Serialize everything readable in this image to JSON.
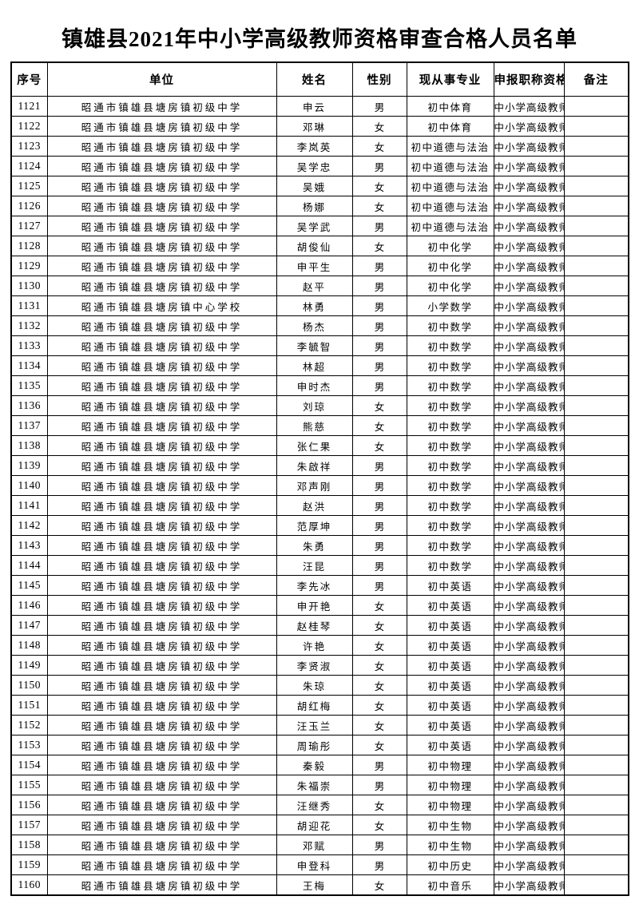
{
  "page": {
    "title": "镇雄县2021年中小学高级教师资格审查合格人员名单"
  },
  "table": {
    "headers": [
      "序号",
      "单位",
      "姓名",
      "性别",
      "现从事专业",
      "申报职称资格",
      "备注"
    ],
    "rows": [
      {
        "no": "1121",
        "unit": "昭通市镇雄县塘房镇初级中学",
        "name": "申云",
        "gender": "男",
        "subject": "初中体育",
        "title": "中小学高级教师",
        "note": ""
      },
      {
        "no": "1122",
        "unit": "昭通市镇雄县塘房镇初级中学",
        "name": "邓琳",
        "gender": "女",
        "subject": "初中体育",
        "title": "中小学高级教师",
        "note": ""
      },
      {
        "no": "1123",
        "unit": "昭通市镇雄县塘房镇初级中学",
        "name": "李岚英",
        "gender": "女",
        "subject": "初中道德与法治",
        "title": "中小学高级教师",
        "note": ""
      },
      {
        "no": "1124",
        "unit": "昭通市镇雄县塘房镇初级中学",
        "name": "吴学忠",
        "gender": "男",
        "subject": "初中道德与法治",
        "title": "中小学高级教师",
        "note": ""
      },
      {
        "no": "1125",
        "unit": "昭通市镇雄县塘房镇初级中学",
        "name": "吴娥",
        "gender": "女",
        "subject": "初中道德与法治",
        "title": "中小学高级教师",
        "note": ""
      },
      {
        "no": "1126",
        "unit": "昭通市镇雄县塘房镇初级中学",
        "name": "杨娜",
        "gender": "女",
        "subject": "初中道德与法治",
        "title": "中小学高级教师",
        "note": ""
      },
      {
        "no": "1127",
        "unit": "昭通市镇雄县塘房镇初级中学",
        "name": "吴学武",
        "gender": "男",
        "subject": "初中道德与法治",
        "title": "中小学高级教师",
        "note": ""
      },
      {
        "no": "1128",
        "unit": "昭通市镇雄县塘房镇初级中学",
        "name": "胡俊仙",
        "gender": "女",
        "subject": "初中化学",
        "title": "中小学高级教师",
        "note": ""
      },
      {
        "no": "1129",
        "unit": "昭通市镇雄县塘房镇初级中学",
        "name": "申平生",
        "gender": "男",
        "subject": "初中化学",
        "title": "中小学高级教师",
        "note": ""
      },
      {
        "no": "1130",
        "unit": "昭通市镇雄县塘房镇初级中学",
        "name": "赵平",
        "gender": "男",
        "subject": "初中化学",
        "title": "中小学高级教师",
        "note": ""
      },
      {
        "no": "1131",
        "unit": "昭通市镇雄县塘房镇中心学校",
        "name": "林勇",
        "gender": "男",
        "subject": "小学数学",
        "title": "中小学高级教师",
        "note": ""
      },
      {
        "no": "1132",
        "unit": "昭通市镇雄县塘房镇初级中学",
        "name": "杨杰",
        "gender": "男",
        "subject": "初中数学",
        "title": "中小学高级教师",
        "note": ""
      },
      {
        "no": "1133",
        "unit": "昭通市镇雄县塘房镇初级中学",
        "name": "李毓智",
        "gender": "男",
        "subject": "初中数学",
        "title": "中小学高级教师",
        "note": ""
      },
      {
        "no": "1134",
        "unit": "昭通市镇雄县塘房镇初级中学",
        "name": "林超",
        "gender": "男",
        "subject": "初中数学",
        "title": "中小学高级教师",
        "note": ""
      },
      {
        "no": "1135",
        "unit": "昭通市镇雄县塘房镇初级中学",
        "name": "申时杰",
        "gender": "男",
        "subject": "初中数学",
        "title": "中小学高级教师",
        "note": ""
      },
      {
        "no": "1136",
        "unit": "昭通市镇雄县塘房镇初级中学",
        "name": "刘琼",
        "gender": "女",
        "subject": "初中数学",
        "title": "中小学高级教师",
        "note": ""
      },
      {
        "no": "1137",
        "unit": "昭通市镇雄县塘房镇初级中学",
        "name": "熊慈",
        "gender": "女",
        "subject": "初中数学",
        "title": "中小学高级教师",
        "note": ""
      },
      {
        "no": "1138",
        "unit": "昭通市镇雄县塘房镇初级中学",
        "name": "张仁果",
        "gender": "女",
        "subject": "初中数学",
        "title": "中小学高级教师",
        "note": ""
      },
      {
        "no": "1139",
        "unit": "昭通市镇雄县塘房镇初级中学",
        "name": "朱啟祥",
        "gender": "男",
        "subject": "初中数学",
        "title": "中小学高级教师",
        "note": ""
      },
      {
        "no": "1140",
        "unit": "昭通市镇雄县塘房镇初级中学",
        "name": "邓声刚",
        "gender": "男",
        "subject": "初中数学",
        "title": "中小学高级教师",
        "note": ""
      },
      {
        "no": "1141",
        "unit": "昭通市镇雄县塘房镇初级中学",
        "name": "赵洪",
        "gender": "男",
        "subject": "初中数学",
        "title": "中小学高级教师",
        "note": ""
      },
      {
        "no": "1142",
        "unit": "昭通市镇雄县塘房镇初级中学",
        "name": "范厚坤",
        "gender": "男",
        "subject": "初中数学",
        "title": "中小学高级教师",
        "note": ""
      },
      {
        "no": "1143",
        "unit": "昭通市镇雄县塘房镇初级中学",
        "name": "朱勇",
        "gender": "男",
        "subject": "初中数学",
        "title": "中小学高级教师",
        "note": ""
      },
      {
        "no": "1144",
        "unit": "昭通市镇雄县塘房镇初级中学",
        "name": "汪昆",
        "gender": "男",
        "subject": "初中数学",
        "title": "中小学高级教师",
        "note": ""
      },
      {
        "no": "1145",
        "unit": "昭通市镇雄县塘房镇初级中学",
        "name": "李先冰",
        "gender": "男",
        "subject": "初中英语",
        "title": "中小学高级教师",
        "note": ""
      },
      {
        "no": "1146",
        "unit": "昭通市镇雄县塘房镇初级中学",
        "name": "申开艳",
        "gender": "女",
        "subject": "初中英语",
        "title": "中小学高级教师",
        "note": ""
      },
      {
        "no": "1147",
        "unit": "昭通市镇雄县塘房镇初级中学",
        "name": "赵桂琴",
        "gender": "女",
        "subject": "初中英语",
        "title": "中小学高级教师",
        "note": ""
      },
      {
        "no": "1148",
        "unit": "昭通市镇雄县塘房镇初级中学",
        "name": "许艳",
        "gender": "女",
        "subject": "初中英语",
        "title": "中小学高级教师",
        "note": ""
      },
      {
        "no": "1149",
        "unit": "昭通市镇雄县塘房镇初级中学",
        "name": "李贤淑",
        "gender": "女",
        "subject": "初中英语",
        "title": "中小学高级教师",
        "note": ""
      },
      {
        "no": "1150",
        "unit": "昭通市镇雄县塘房镇初级中学",
        "name": "朱琼",
        "gender": "女",
        "subject": "初中英语",
        "title": "中小学高级教师",
        "note": ""
      },
      {
        "no": "1151",
        "unit": "昭通市镇雄县塘房镇初级中学",
        "name": "胡红梅",
        "gender": "女",
        "subject": "初中英语",
        "title": "中小学高级教师",
        "note": ""
      },
      {
        "no": "1152",
        "unit": "昭通市镇雄县塘房镇初级中学",
        "name": "汪玉兰",
        "gender": "女",
        "subject": "初中英语",
        "title": "中小学高级教师",
        "note": ""
      },
      {
        "no": "1153",
        "unit": "昭通市镇雄县塘房镇初级中学",
        "name": "周瑜彤",
        "gender": "女",
        "subject": "初中英语",
        "title": "中小学高级教师",
        "note": ""
      },
      {
        "no": "1154",
        "unit": "昭通市镇雄县塘房镇初级中学",
        "name": "秦毅",
        "gender": "男",
        "subject": "初中物理",
        "title": "中小学高级教师",
        "note": ""
      },
      {
        "no": "1155",
        "unit": "昭通市镇雄县塘房镇初级中学",
        "name": "朱福崇",
        "gender": "男",
        "subject": "初中物理",
        "title": "中小学高级教师",
        "note": ""
      },
      {
        "no": "1156",
        "unit": "昭通市镇雄县塘房镇初级中学",
        "name": "汪继秀",
        "gender": "女",
        "subject": "初中物理",
        "title": "中小学高级教师",
        "note": ""
      },
      {
        "no": "1157",
        "unit": "昭通市镇雄县塘房镇初级中学",
        "name": "胡迎花",
        "gender": "女",
        "subject": "初中生物",
        "title": "中小学高级教师",
        "note": ""
      },
      {
        "no": "1158",
        "unit": "昭通市镇雄县塘房镇初级中学",
        "name": "邓赋",
        "gender": "男",
        "subject": "初中生物",
        "title": "中小学高级教师",
        "note": ""
      },
      {
        "no": "1159",
        "unit": "昭通市镇雄县塘房镇初级中学",
        "name": "申登科",
        "gender": "男",
        "subject": "初中历史",
        "title": "中小学高级教师",
        "note": ""
      },
      {
        "no": "1160",
        "unit": "昭通市镇雄县塘房镇初级中学",
        "name": "王梅",
        "gender": "女",
        "subject": "初中音乐",
        "title": "中小学高级教师",
        "note": ""
      }
    ]
  }
}
